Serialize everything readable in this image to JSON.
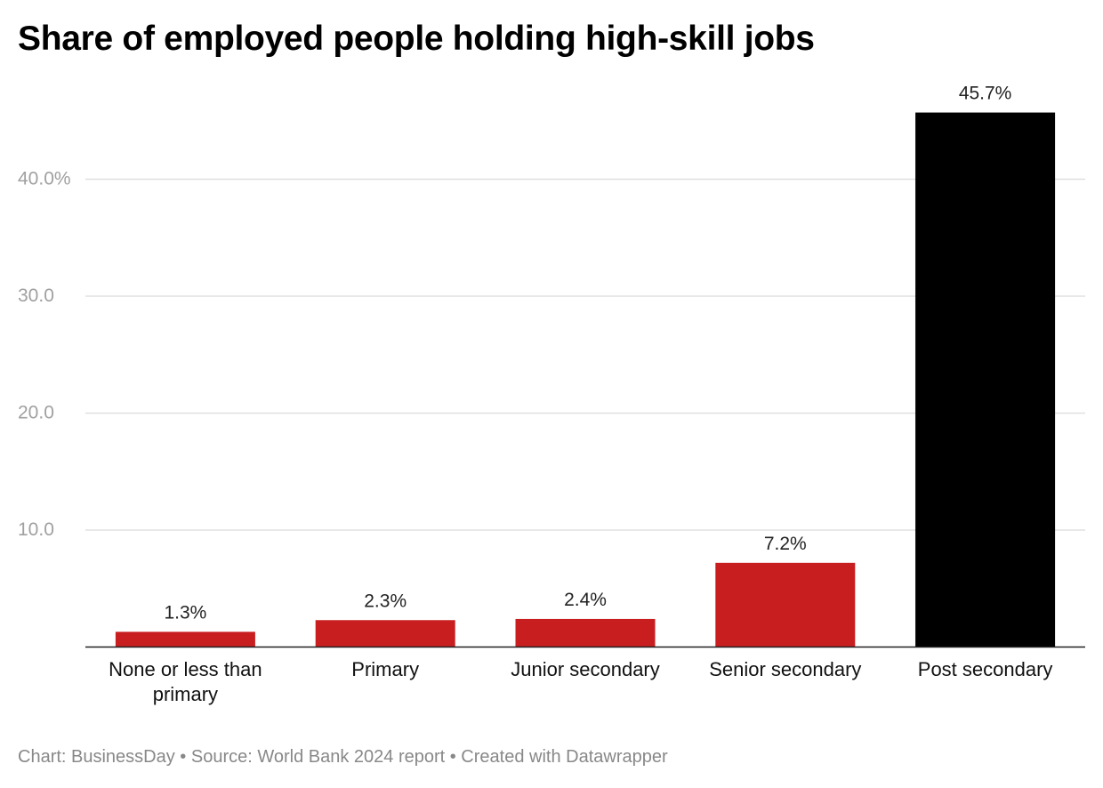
{
  "title": "Share of employed people holding high-skill jobs",
  "footer": "Chart: BusinessDay • Source: World Bank 2024 report • Created with Datawrapper",
  "colors": {
    "highlight": "#c91e20",
    "emphasis": "#000000",
    "grid": "#e0e0e0",
    "axis_text": "#a0a0a0",
    "label_text": "#222222"
  },
  "chart_data": {
    "type": "bar",
    "title": "Share of employed people holding high-skill jobs",
    "categories": [
      [
        "None or less than",
        "primary"
      ],
      [
        "Primary"
      ],
      [
        "Junior secondary"
      ],
      [
        "Senior secondary"
      ],
      [
        "Post secondary"
      ]
    ],
    "values": [
      1.3,
      2.3,
      2.4,
      7.2,
      45.7
    ],
    "value_labels": [
      "1.3%",
      "2.3%",
      "2.4%",
      "7.2%",
      "45.7%"
    ],
    "bar_colors": [
      "#c91e20",
      "#c91e20",
      "#c91e20",
      "#c91e20",
      "#000000"
    ],
    "y_ticks": [
      10,
      20,
      30,
      40
    ],
    "y_tick_labels": [
      "10.0",
      "20.0",
      "30.0",
      "40.0%"
    ],
    "ylim": [
      0,
      50
    ],
    "grid": true,
    "xlabel": "",
    "ylabel": ""
  }
}
